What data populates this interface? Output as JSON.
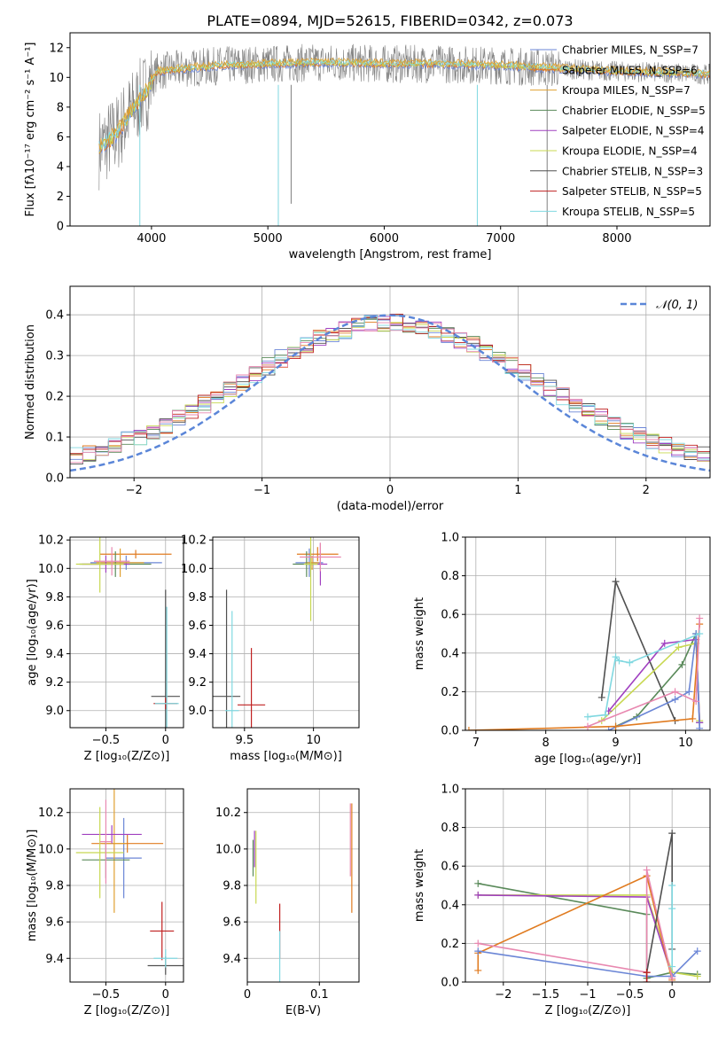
{
  "title": "PLATE=0894, MJD=52615, FIBERID=0342, z=0.073",
  "colors": [
    "#6b86d6",
    "#e07b20",
    "#e0a030",
    "#5a8a5a",
    "#a040c0",
    "#c8d850",
    "#505050",
    "#c02020",
    "#80d8e0",
    "#e888b0",
    "#808080"
  ],
  "chart_data": [
    {
      "id": "spectrum",
      "type": "line",
      "xlabel": "wavelength [Angstrom, rest frame]",
      "ylabel": "Flux [fλ10⁻¹⁷ erg cm⁻² s⁻¹ A⁻¹]",
      "xlim": [
        3300,
        8800
      ],
      "ylim": [
        0,
        13
      ],
      "xticks": [
        4000,
        5000,
        6000,
        7000,
        8000
      ],
      "yticks": [
        0,
        2,
        4,
        6,
        8,
        10,
        12
      ],
      "series_legend": [
        "Chabrier MILES, N_SSP=7",
        "Salpeter MILES, N_SSP=6",
        "Kroupa MILES, N_SSP=7",
        "Chabrier ELODIE, N_SSP=5",
        "Salpeter ELODIE, N_SSP=4",
        "Kroupa ELODIE, N_SSP=4",
        "Chabrier STELIB, N_SSP=3",
        "Salpeter STELIB, N_SSP=5",
        "Kroupa STELIB, N_SSP=5"
      ],
      "data_envelope": {
        "x": [
          3550,
          3700,
          3850,
          3950,
          4050,
          4300,
          4600,
          5000,
          5500,
          6000,
          6500,
          7000,
          7500,
          8000,
          8500,
          8800
        ],
        "y": [
          5.2,
          6.2,
          8.0,
          9.0,
          10.4,
          10.6,
          10.8,
          10.9,
          11.0,
          10.9,
          10.9,
          10.8,
          10.6,
          10.4,
          10.3,
          10.2
        ]
      }
    },
    {
      "id": "residual-hist",
      "type": "histogram",
      "xlabel": "(data-model)/error",
      "ylabel": "Normed distribution",
      "xlim": [
        -2.5,
        2.5
      ],
      "ylim": [
        0,
        0.47
      ],
      "xticks": [
        -2,
        -1,
        0,
        1,
        2
      ],
      "yticks": [
        0.0,
        0.1,
        0.2,
        0.3,
        0.4
      ],
      "legend": "𝒩(0, 1)",
      "reference": "normal(0,1)"
    },
    {
      "id": "age-vs-Z",
      "type": "errorbar",
      "xlabel": "Z [log₁₀(Z/Z⊙)]",
      "ylabel": "age  [log₁₀(age/yr)]",
      "xlim": [
        -0.8,
        0.15
      ],
      "ylim": [
        8.88,
        10.22
      ],
      "xticks": [
        -0.5,
        0.0
      ],
      "yticks": [
        9.0,
        9.2,
        9.4,
        9.6,
        9.8,
        10.0,
        10.2
      ],
      "points": [
        {
          "x": -0.33,
          "y": 10.04,
          "xerr": 0.3,
          "yerr": 0.05,
          "c": 0
        },
        {
          "x": -0.25,
          "y": 10.1,
          "xerr": 0.3,
          "yerr": 0.03,
          "c": 1
        },
        {
          "x": -0.38,
          "y": 10.04,
          "xerr": 0.2,
          "yerr": 0.1,
          "c": 2
        },
        {
          "x": -0.42,
          "y": 10.03,
          "xerr": 0.3,
          "yerr": 0.09,
          "c": 3
        },
        {
          "x": -0.5,
          "y": 10.03,
          "xerr": 0.2,
          "yerr": 0.06,
          "c": 4
        },
        {
          "x": -0.55,
          "y": 10.03,
          "xerr": 0.2,
          "yerr": 0.2,
          "c": 5
        },
        {
          "x": 0.0,
          "y": 9.1,
          "xerr": 0.12,
          "yerr": 0.75,
          "c": 6
        },
        {
          "x": 0.0,
          "y": 9.05,
          "xerr": 0.1,
          "yerr": 0.04,
          "c": 7
        },
        {
          "x": 0.01,
          "y": 9.05,
          "xerr": 0.1,
          "yerr": 0.68,
          "c": 8
        },
        {
          "x": -0.45,
          "y": 10.05,
          "xerr": 0.15,
          "yerr": 0.1,
          "c": 9
        }
      ]
    },
    {
      "id": "age-vs-mass",
      "type": "errorbar",
      "xlabel": "mass [log₁₀(M/M⊙)]",
      "ylabel": "",
      "xlim": [
        9.27,
        10.33
      ],
      "ylim": [
        8.88,
        10.22
      ],
      "xticks": [
        9.5,
        10.0
      ],
      "yticks": [
        9.0,
        9.2,
        9.4,
        9.6,
        9.8,
        10.0,
        10.2
      ],
      "points": [
        {
          "x": 9.97,
          "y": 10.04,
          "xerr": 0.1,
          "yerr": 0.1,
          "c": 0
        },
        {
          "x": 10.03,
          "y": 10.1,
          "xerr": 0.15,
          "yerr": 0.05,
          "c": 1
        },
        {
          "x": 9.99,
          "y": 10.04,
          "xerr": 0.05,
          "yerr": 0.05,
          "c": 2
        },
        {
          "x": 9.95,
          "y": 10.03,
          "xerr": 0.1,
          "yerr": 0.09,
          "c": 3
        },
        {
          "x": 10.05,
          "y": 10.03,
          "xerr": 0.05,
          "yerr": 0.15,
          "c": 4
        },
        {
          "x": 9.98,
          "y": 10.03,
          "xerr": 0.05,
          "yerr": 0.4,
          "c": 5
        },
        {
          "x": 9.37,
          "y": 9.1,
          "xerr": 0.1,
          "yerr": 0.75,
          "c": 6
        },
        {
          "x": 9.55,
          "y": 9.04,
          "xerr": 0.1,
          "yerr": 0.4,
          "c": 7
        },
        {
          "x": 9.41,
          "y": 9.0,
          "xerr": 0.05,
          "yerr": 0.7,
          "c": 8
        },
        {
          "x": 10.05,
          "y": 10.08,
          "xerr": 0.15,
          "yerr": 0.1,
          "c": 9
        }
      ]
    },
    {
      "id": "mass-weight-vs-age",
      "type": "line",
      "xlabel": "age  [log₁₀(age/yr)]",
      "ylabel": "mass weight",
      "xlim": [
        6.85,
        10.35
      ],
      "ylim": [
        0,
        1.0
      ],
      "xticks": [
        7,
        8,
        9,
        10
      ],
      "yticks": [
        0.0,
        0.2,
        0.4,
        0.6,
        0.8,
        1.0
      ],
      "series": [
        {
          "c": 6,
          "x": [
            8.8,
            9.0,
            9.85
          ],
          "y": [
            0.17,
            0.77,
            0.05
          ]
        },
        {
          "c": 3,
          "x": [
            9.0,
            9.3,
            9.95,
            10.15,
            10.2
          ],
          "y": [
            0.02,
            0.07,
            0.34,
            0.5,
            0.04
          ]
        },
        {
          "c": 5,
          "x": [
            8.8,
            9.9,
            10.15,
            10.2
          ],
          "y": [
            0.05,
            0.43,
            0.45,
            0.05
          ]
        },
        {
          "c": 4,
          "x": [
            8.9,
            9.7,
            10.15,
            10.2
          ],
          "y": [
            0.1,
            0.45,
            0.47,
            0.04
          ]
        },
        {
          "c": 0,
          "x": [
            8.9,
            9.85,
            10.05,
            10.15,
            10.2
          ],
          "y": [
            0.0,
            0.16,
            0.2,
            0.5,
            0.01
          ]
        },
        {
          "c": 1,
          "x": [
            6.9,
            9.0,
            10.1,
            10.2
          ],
          "y": [
            0.0,
            0.02,
            0.06,
            0.55
          ]
        },
        {
          "c": 9,
          "x": [
            8.6,
            9.85,
            10.15,
            10.2
          ],
          "y": [
            0.02,
            0.2,
            0.15,
            0.58
          ]
        },
        {
          "c": 8,
          "x": [
            8.6,
            8.85,
            9.0,
            9.05,
            9.2,
            10.2
          ],
          "y": [
            0.07,
            0.08,
            0.38,
            0.36,
            0.35,
            0.5
          ]
        }
      ]
    },
    {
      "id": "mass-vs-Z",
      "type": "errorbar",
      "xlabel": "Z [log₁₀(Z/Z⊙)]",
      "ylabel": "mass [log₁₀(M/M⊙)]",
      "xlim": [
        -0.8,
        0.15
      ],
      "ylim": [
        9.27,
        10.33
      ],
      "xticks": [
        -0.5,
        0.0
      ],
      "yticks": [
        9.4,
        9.6,
        9.8,
        10.0,
        10.2
      ],
      "points": [
        {
          "x": -0.35,
          "y": 9.95,
          "xerr": 0.15,
          "yerr": 0.22,
          "c": 0
        },
        {
          "x": -0.32,
          "y": 10.03,
          "xerr": 0.3,
          "yerr": 0.05,
          "c": 1
        },
        {
          "x": -0.43,
          "y": 10.03,
          "xerr": 0.1,
          "yerr": 0.38,
          "c": 2
        },
        {
          "x": -0.5,
          "y": 9.94,
          "xerr": 0.2,
          "yerr": 0.1,
          "c": 3
        },
        {
          "x": -0.45,
          "y": 10.08,
          "xerr": 0.25,
          "yerr": 0.05,
          "c": 4
        },
        {
          "x": -0.55,
          "y": 9.98,
          "xerr": 0.2,
          "yerr": 0.25,
          "c": 5
        },
        {
          "x": 0.0,
          "y": 9.36,
          "xerr": 0.15,
          "yerr": 0.05,
          "c": 6
        },
        {
          "x": -0.03,
          "y": 9.55,
          "xerr": 0.1,
          "yerr": 0.16,
          "c": 7
        },
        {
          "x": 0.0,
          "y": 9.4,
          "xerr": 0.1,
          "yerr": 0.05,
          "c": 8
        },
        {
          "x": -0.5,
          "y": 10.04,
          "xerr": 0.05,
          "yerr": 0.23,
          "c": 9
        }
      ]
    },
    {
      "id": "mass-vs-EBV",
      "type": "errorbar",
      "xlabel": "E(B-V)",
      "ylabel": "",
      "xlim": [
        0.0,
        0.155
      ],
      "ylim": [
        9.27,
        10.33
      ],
      "xticks": [
        0.0,
        0.1
      ],
      "yticks": [
        9.4,
        9.6,
        9.8,
        10.0,
        10.2
      ],
      "points": [
        {
          "x": 0.008,
          "y": 9.95,
          "yerr": 0.1,
          "c": 3
        },
        {
          "x": 0.01,
          "y": 10.0,
          "yerr": 0.1,
          "c": 4
        },
        {
          "x": 0.012,
          "y": 9.9,
          "yerr": 0.2,
          "c": 5
        },
        {
          "x": 0.045,
          "y": 9.55,
          "yerr": 0.15,
          "c": 7
        },
        {
          "x": 0.045,
          "y": 9.4,
          "yerr": 0.15,
          "c": 8
        },
        {
          "x": 0.145,
          "y": 9.95,
          "yerr": 0.3,
          "c": 1
        },
        {
          "x": 0.143,
          "y": 10.05,
          "yerr": 0.2,
          "c": 9
        }
      ]
    },
    {
      "id": "mass-weight-vs-Z",
      "type": "line",
      "xlabel": "Z [log₁₀(Z/Z⊙)]",
      "ylabel": "mass weight",
      "xlim": [
        -2.45,
        0.45
      ],
      "ylim": [
        0,
        1.0
      ],
      "xticks": [
        -2.0,
        -1.5,
        -1.0,
        -0.5,
        0.0
      ],
      "yticks": [
        0.0,
        0.2,
        0.4,
        0.6,
        0.8,
        1.0
      ],
      "series": [
        {
          "c": 3,
          "x": [
            -2.3,
            -0.3,
            -0.3,
            0.0,
            0.3
          ],
          "y": [
            0.51,
            0.35,
            0.02,
            0.05,
            0.04
          ]
        },
        {
          "c": 5,
          "x": [
            -2.3,
            -0.3,
            0.0,
            0.3
          ],
          "y": [
            0.45,
            0.45,
            0.05,
            0.03
          ]
        },
        {
          "c": 4,
          "x": [
            -2.3,
            -0.3,
            0.0
          ],
          "y": [
            0.45,
            0.44,
            0.03
          ]
        },
        {
          "c": 1,
          "x": [
            -2.3,
            -2.3,
            -0.3,
            0.0
          ],
          "y": [
            0.06,
            0.15,
            0.55,
            0.01
          ]
        },
        {
          "c": 0,
          "x": [
            -2.3,
            -0.3,
            0.0,
            0.3
          ],
          "y": [
            0.16,
            0.03,
            0.03,
            0.16
          ]
        },
        {
          "c": 9,
          "x": [
            -2.3,
            -0.3,
            -0.3,
            0.0
          ],
          "y": [
            0.2,
            0.05,
            0.58,
            0.02
          ]
        },
        {
          "c": 6,
          "x": [
            -0.3,
            0.0,
            0.0
          ],
          "y": [
            0.05,
            0.77,
            0.17
          ]
        },
        {
          "c": 8,
          "x": [
            0.0,
            0.0,
            0.0
          ],
          "y": [
            0.38,
            0.08,
            0.5
          ]
        },
        {
          "c": 7,
          "x": [
            -0.3,
            -0.3
          ],
          "y": [
            0.0,
            0.05
          ]
        }
      ]
    }
  ]
}
